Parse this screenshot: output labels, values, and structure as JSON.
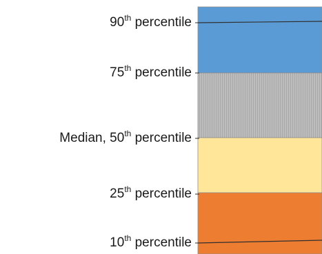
{
  "chart_data": {
    "type": "box-legend",
    "labels": [
      {
        "id": "p90",
        "prefix": "",
        "number": "90",
        "sup": "th",
        "suffix": " percentile"
      },
      {
        "id": "p75",
        "prefix": "",
        "number": "75",
        "sup": "th",
        "suffix": " percentile"
      },
      {
        "id": "p50",
        "prefix": "Median, ",
        "number": "50",
        "sup": "th",
        "suffix": " percentile"
      },
      {
        "id": "p25",
        "prefix": "",
        "number": "25",
        "sup": "th",
        "suffix": " percentile"
      },
      {
        "id": "p10",
        "prefix": "",
        "number": "10",
        "sup": "th",
        "suffix": " percentile"
      }
    ],
    "bands": [
      {
        "id": "upper",
        "from": "75th percentile",
        "to": "90th percentile and above",
        "color": "#5b9bd5",
        "pattern": "none"
      },
      {
        "id": "upper-mid",
        "from": "Median",
        "to": "75th percentile",
        "color": "#bfbfbf",
        "pattern": "vertical-hatch"
      },
      {
        "id": "lower-mid",
        "from": "25th percentile",
        "to": "Median",
        "color": "#ffe699",
        "pattern": "none"
      },
      {
        "id": "lower",
        "from": "10th percentile and below",
        "to": "25th percentile",
        "color": "#ed7d31",
        "pattern": "none"
      }
    ],
    "marker_lines": [
      "90th percentile",
      "10th percentile"
    ],
    "line_color": "#2f2f2f"
  }
}
